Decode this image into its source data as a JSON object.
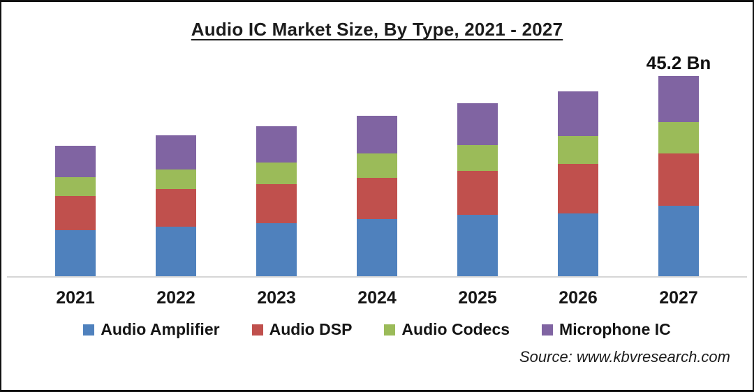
{
  "title": "Audio IC Market Size, By Type, 2021 - 2027",
  "source": "Source: www.kbvresearch.com",
  "chart_data": {
    "type": "bar",
    "stacked": true,
    "title": "Audio IC Market Size, By Type, 2021 - 2027",
    "unit": "USD Bn",
    "categories": [
      "2021",
      "2022",
      "2023",
      "2024",
      "2025",
      "2026",
      "2027"
    ],
    "series": [
      {
        "name": "Audio Amplifier",
        "color": "#4F81BD",
        "values": [
          10.4,
          11.2,
          12.0,
          12.9,
          13.9,
          14.1,
          15.9
        ]
      },
      {
        "name": "Audio DSP",
        "color": "#C0504D",
        "values": [
          7.7,
          8.5,
          8.8,
          9.3,
          9.9,
          11.2,
          11.8
        ]
      },
      {
        "name": "Audio Codecs",
        "color": "#9BBB59",
        "values": [
          4.3,
          4.4,
          4.9,
          5.5,
          5.8,
          6.3,
          7.1
        ]
      },
      {
        "name": "Microphone IC",
        "color": "#8064A2",
        "values": [
          7.1,
          7.7,
          8.2,
          8.5,
          9.5,
          10.1,
          10.4
        ]
      }
    ],
    "totals": [
      29.5,
      31.8,
      33.9,
      36.2,
      39.1,
      41.7,
      45.2
    ],
    "annotations": [
      {
        "category": "2027",
        "text": "45.2 Bn"
      }
    ],
    "legend_position": "bottom",
    "grid": false,
    "axis_line_color": "#D6D6D6",
    "ylim": [
      0,
      50
    ]
  }
}
